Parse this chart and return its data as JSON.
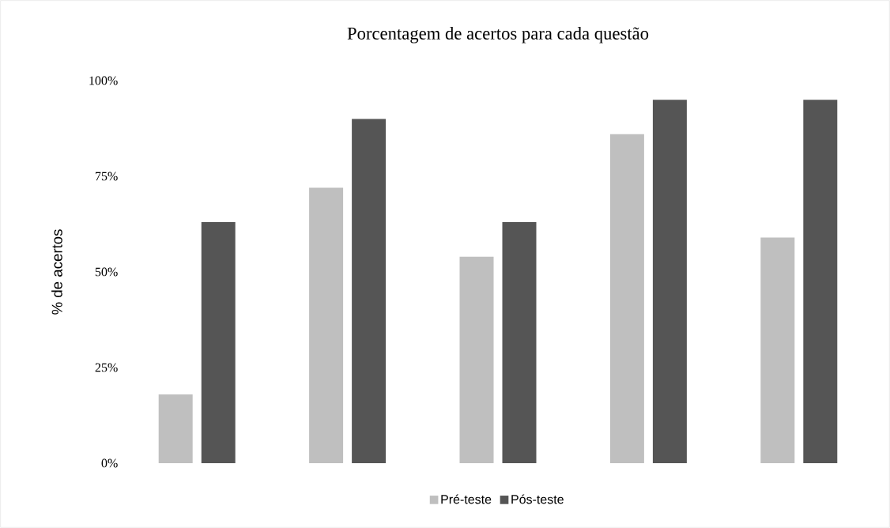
{
  "chart_data": {
    "type": "bar",
    "title": "Porcentagem de acertos para cada questão",
    "ylabel": "% de acertos",
    "categories": [
      null,
      null,
      null,
      null,
      null
    ],
    "series": [
      {
        "name": "Pré-teste",
        "color": "#bfbfbf",
        "values": [
          18,
          72,
          54,
          86,
          59
        ]
      },
      {
        "name": "Pós-teste",
        "color": "#555555",
        "values": [
          63,
          90,
          63,
          95,
          95
        ]
      }
    ],
    "ylim": [
      0,
      100
    ],
    "yticks": [
      {
        "value": 0,
        "label": "0%"
      },
      {
        "value": 25,
        "label": "25%"
      },
      {
        "value": 50,
        "label": "50%"
      },
      {
        "value": 75,
        "label": "75%"
      },
      {
        "value": 100,
        "label": "100%"
      }
    ],
    "grid": false,
    "legend": "bottom"
  }
}
